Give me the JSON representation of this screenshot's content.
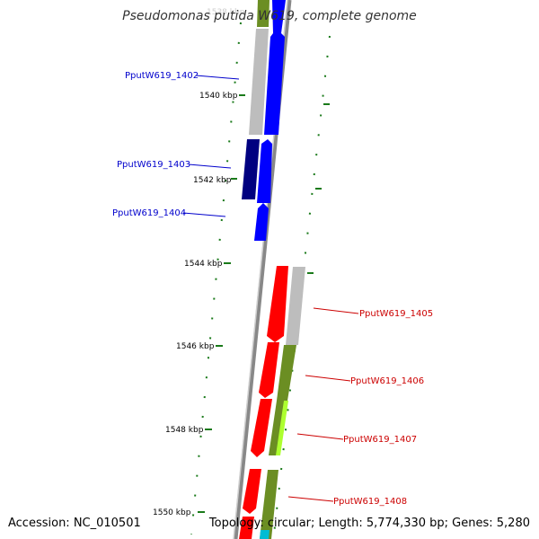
{
  "title": "Pseudomonas putida W619, complete genome",
  "faded_top_label": "1538 kbp",
  "footer": {
    "accession": "Accession: NC_010501",
    "topology": "Topology: circular; Length: 5,774,330 bp; Genes: 5,280"
  },
  "scale_labels": [
    {
      "text": "1540 kbp",
      "value_kbp": 1540
    },
    {
      "text": "1542 kbp",
      "value_kbp": 1542
    },
    {
      "text": "1544 kbp",
      "value_kbp": 1544
    },
    {
      "text": "1546 kbp",
      "value_kbp": 1546
    },
    {
      "text": "1548 kbp",
      "value_kbp": 1548
    },
    {
      "text": "1550 kbp",
      "value_kbp": 1550
    }
  ],
  "genes_left": [
    {
      "locus": "PputW619_1402",
      "color": "#0000cc"
    },
    {
      "locus": "PputW619_1403",
      "color": "#0000cc"
    },
    {
      "locus": "PputW619_1404",
      "color": "#0000cc"
    }
  ],
  "genes_right": [
    {
      "locus": "PputW619_1405",
      "color": "#cc0000"
    },
    {
      "locus": "PputW619_1406",
      "color": "#cc0000"
    },
    {
      "locus": "PputW619_1407",
      "color": "#cc0000"
    },
    {
      "locus": "PputW619_1408",
      "color": "#cc0000"
    }
  ],
  "colors": {
    "backbone": "#888888",
    "tick": "#1a7a1a",
    "forward_strand": "#0000ff",
    "reverse_strand": "#ff0000"
  }
}
